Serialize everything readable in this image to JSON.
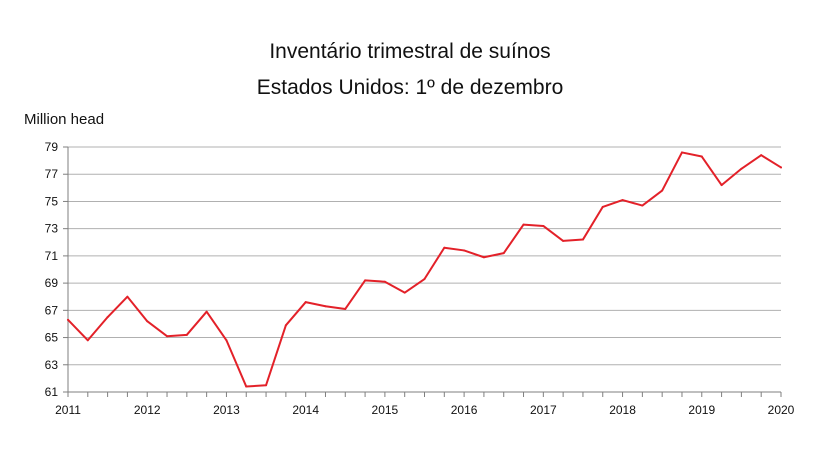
{
  "chart_data": {
    "type": "line",
    "title_lines": [
      "Inventário trimestral de suínos",
      "Estados Unidos: 1º de dezembro"
    ],
    "ylabel": "Million head",
    "xlabel": "",
    "ylim": [
      61,
      79
    ],
    "yticks": [
      61,
      63,
      65,
      67,
      69,
      71,
      73,
      75,
      77,
      79
    ],
    "xlim": [
      2011,
      2020
    ],
    "xticks": [
      "2011",
      "2012",
      "2013",
      "2014",
      "2015",
      "2016",
      "2017",
      "2018",
      "2019",
      "2020"
    ],
    "grid": true,
    "line_color": "#e32129",
    "series": [
      {
        "x": [
          2011.0,
          2011.25,
          2011.5,
          2011.75,
          2012.0,
          2012.25,
          2012.5,
          2012.75,
          2013.0,
          2013.25,
          2013.5,
          2013.75,
          2014.0,
          2014.25,
          2014.5,
          2014.75,
          2015.0,
          2015.25,
          2015.5,
          2015.75,
          2016.0,
          2016.25,
          2016.5,
          2016.75,
          2017.0,
          2017.25,
          2017.5,
          2017.75,
          2018.0,
          2018.25,
          2018.5,
          2018.75,
          2019.0,
          2019.25,
          2019.5,
          2019.75,
          2020.0
        ],
        "values": [
          66.3,
          64.8,
          66.5,
          68.0,
          66.2,
          65.1,
          65.2,
          66.9,
          64.8,
          61.4,
          61.5,
          65.9,
          67.6,
          67.3,
          67.1,
          69.2,
          69.1,
          68.3,
          69.3,
          71.6,
          71.4,
          70.9,
          71.2,
          73.3,
          73.2,
          72.1,
          72.2,
          74.6,
          75.1,
          74.7,
          75.8,
          78.6,
          78.3,
          76.2,
          77.4,
          78.4,
          77.5
        ]
      }
    ]
  }
}
